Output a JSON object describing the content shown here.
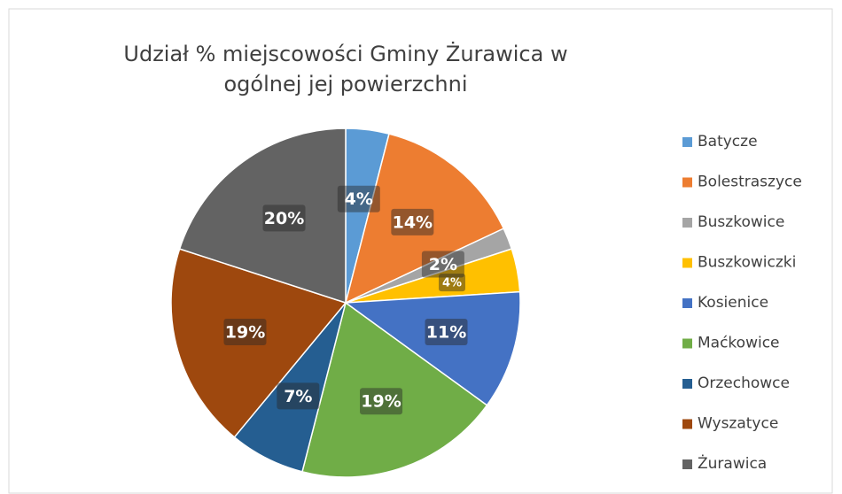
{
  "chart_data": {
    "type": "pie",
    "title": "Udział % miejscowości Gminy Żurawica w ogólnej jej powierzchni",
    "categories": [
      "Batycze",
      "Bolestraszyce",
      "Buszkowice",
      "Buszkowiczki",
      "Kosienice",
      "Maćkowice",
      "Orzechowce",
      "Wyszatyce",
      "Żurawica"
    ],
    "values": [
      4,
      14,
      2,
      4,
      11,
      19,
      7,
      19,
      20
    ],
    "value_labels": [
      "4%",
      "14%",
      "2%",
      "4%",
      "11%",
      "19%",
      "7%",
      "19%",
      "20%"
    ],
    "colors": [
      "#5b9bd5",
      "#ed7d31",
      "#a5a5a5",
      "#ffc000",
      "#4472c4",
      "#70ad47",
      "#255e91",
      "#9e480e",
      "#636363"
    ],
    "legend": "right"
  }
}
